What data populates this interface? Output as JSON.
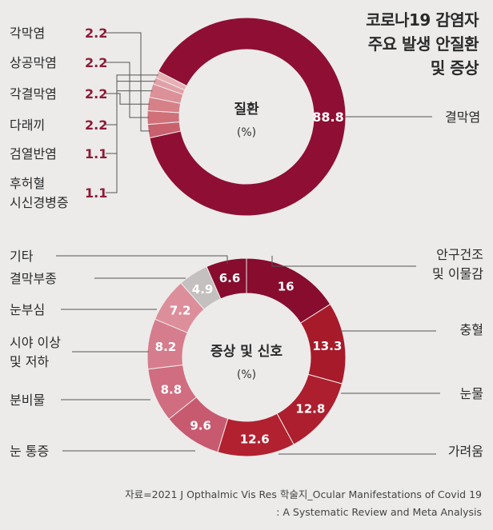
{
  "title_lines": [
    "코로나19 감염자",
    "주요 발생 안질환",
    "및 증상"
  ],
  "source_lines": [
    "자료=2021 J Opthalmic Vis Res 학술지_Ocular Manifestations of Covid 19",
    ": A Systematic Review and Meta Analysis"
  ],
  "colors": {
    "background": "#ecebea",
    "disease_main": "#8e0f33",
    "disease_minor": [
      "#c9606e",
      "#d07079",
      "#d68088",
      "#dc9098",
      "#e1a0a7",
      "#e6b0b5"
    ],
    "symptom_series": [
      "#870c2e",
      "#a71a2a",
      "#ad1f2e",
      "#b2212f",
      "#c85a70",
      "#d06d80",
      "#d67d8d",
      "#dd8e9b",
      "#c4c0c0"
    ],
    "value_text": "#8e1a36",
    "leader_line": "#555555"
  },
  "chart_data": [
    {
      "type": "pie",
      "donut": true,
      "center_label": "질환",
      "center_unit": "(%)",
      "unit": "%",
      "categories": [
        "결막염",
        "각막염",
        "상공막염",
        "각결막염",
        "다래끼",
        "검열반염",
        "후허혈\n시신경병증"
      ],
      "values": [
        88.8,
        2.2,
        2.2,
        2.2,
        2.2,
        1.1,
        1.1
      ],
      "value_labels": [
        "88.8",
        "2.2",
        "2.2",
        "2.2",
        "2.2",
        "1.1",
        "1.1"
      ]
    },
    {
      "type": "pie",
      "donut": true,
      "center_label": "증상 및 신호",
      "center_unit": "(%)",
      "unit": "%",
      "categories": [
        "안구건조\n및 이물감",
        "충혈",
        "눈물",
        "가려움",
        "눈 통증",
        "분비물",
        "시야 이상\n및 저하",
        "눈부심",
        "결막부종",
        "기타"
      ],
      "values": [
        16,
        13.3,
        12.8,
        12.6,
        9.6,
        8.8,
        8.2,
        7.2,
        4.9,
        6.6
      ],
      "value_labels": [
        "16",
        "13.3",
        "12.8",
        "12.6",
        "9.6",
        "8.8",
        "8.2",
        "7.2",
        "4.9",
        "6.6"
      ]
    }
  ]
}
